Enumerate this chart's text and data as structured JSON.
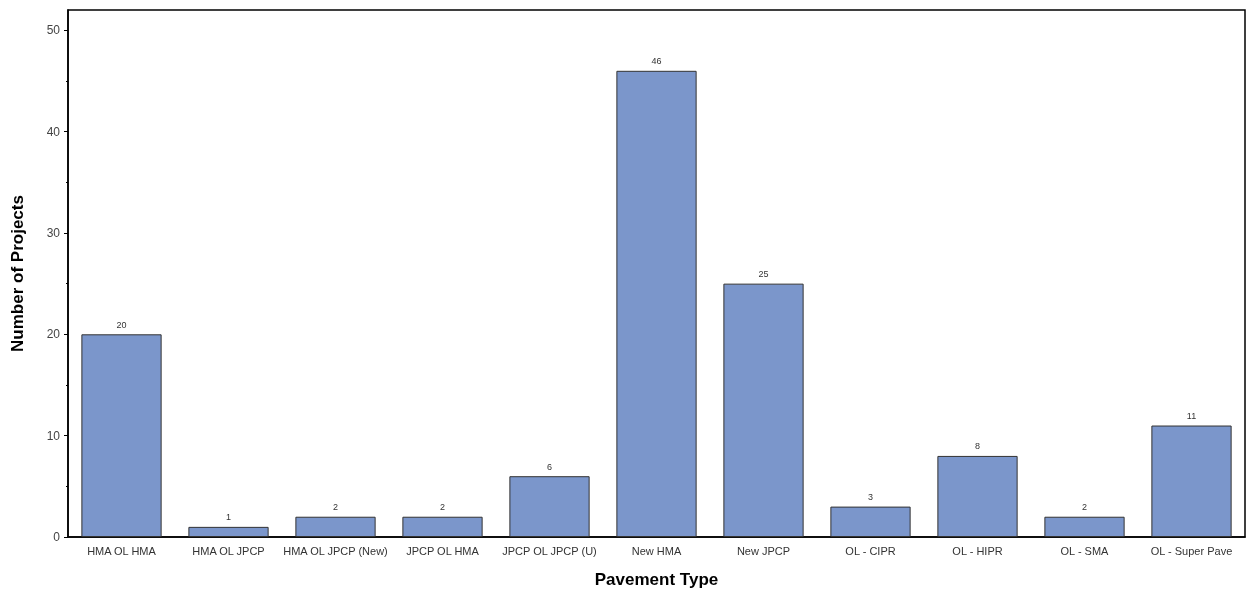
{
  "chart_data": {
    "type": "bar",
    "xlabel": "Pavement Type",
    "ylabel": "Number of Projects",
    "categories": [
      "HMA OL HMA",
      "HMA OL JPCP",
      "HMA OL JPCP (New)",
      "JPCP OL HMA",
      "JPCP OL JPCP (U)",
      "New HMA",
      "New JPCP",
      "OL - CIPR",
      "OL - HIPR",
      "OL - SMA",
      "OL - Super Pave"
    ],
    "values": [
      20,
      1,
      2,
      2,
      6,
      46,
      25,
      3,
      8,
      2,
      11
    ],
    "color": "#7b96cb",
    "ylim": [
      0,
      52
    ],
    "yticks": [
      0,
      10,
      20,
      30,
      40,
      50
    ],
    "grid": false,
    "data_labels": true
  }
}
